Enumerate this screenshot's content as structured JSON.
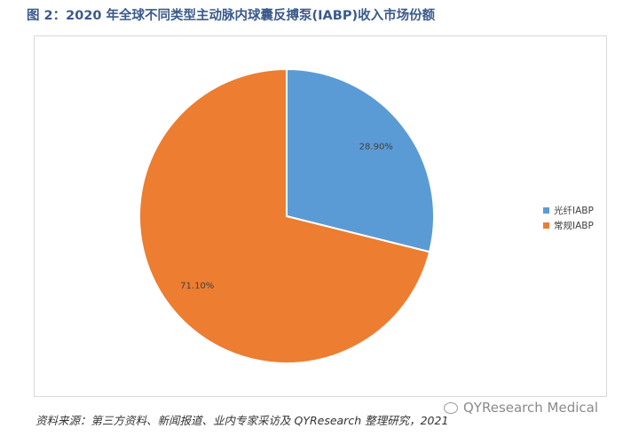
{
  "figure": {
    "title": "图 2：2020 年全球不同类型主动脉内球囊反搏泵(IABP)收入市场份额",
    "source": "资料来源：第三方资料、新闻报道、业内专家采访及 QYResearch 整理研究，2021",
    "watermark": "QYResearch Medical"
  },
  "chart_data": {
    "type": "pie",
    "title": "",
    "legend_position": "right",
    "slices": [
      {
        "label": "光纤IABP",
        "value": 28.9,
        "display": "28.90%",
        "color": "#5b9bd5"
      },
      {
        "label": "常规IABP",
        "value": 71.1,
        "display": "71.10%",
        "color": "#ed7d31"
      }
    ]
  }
}
